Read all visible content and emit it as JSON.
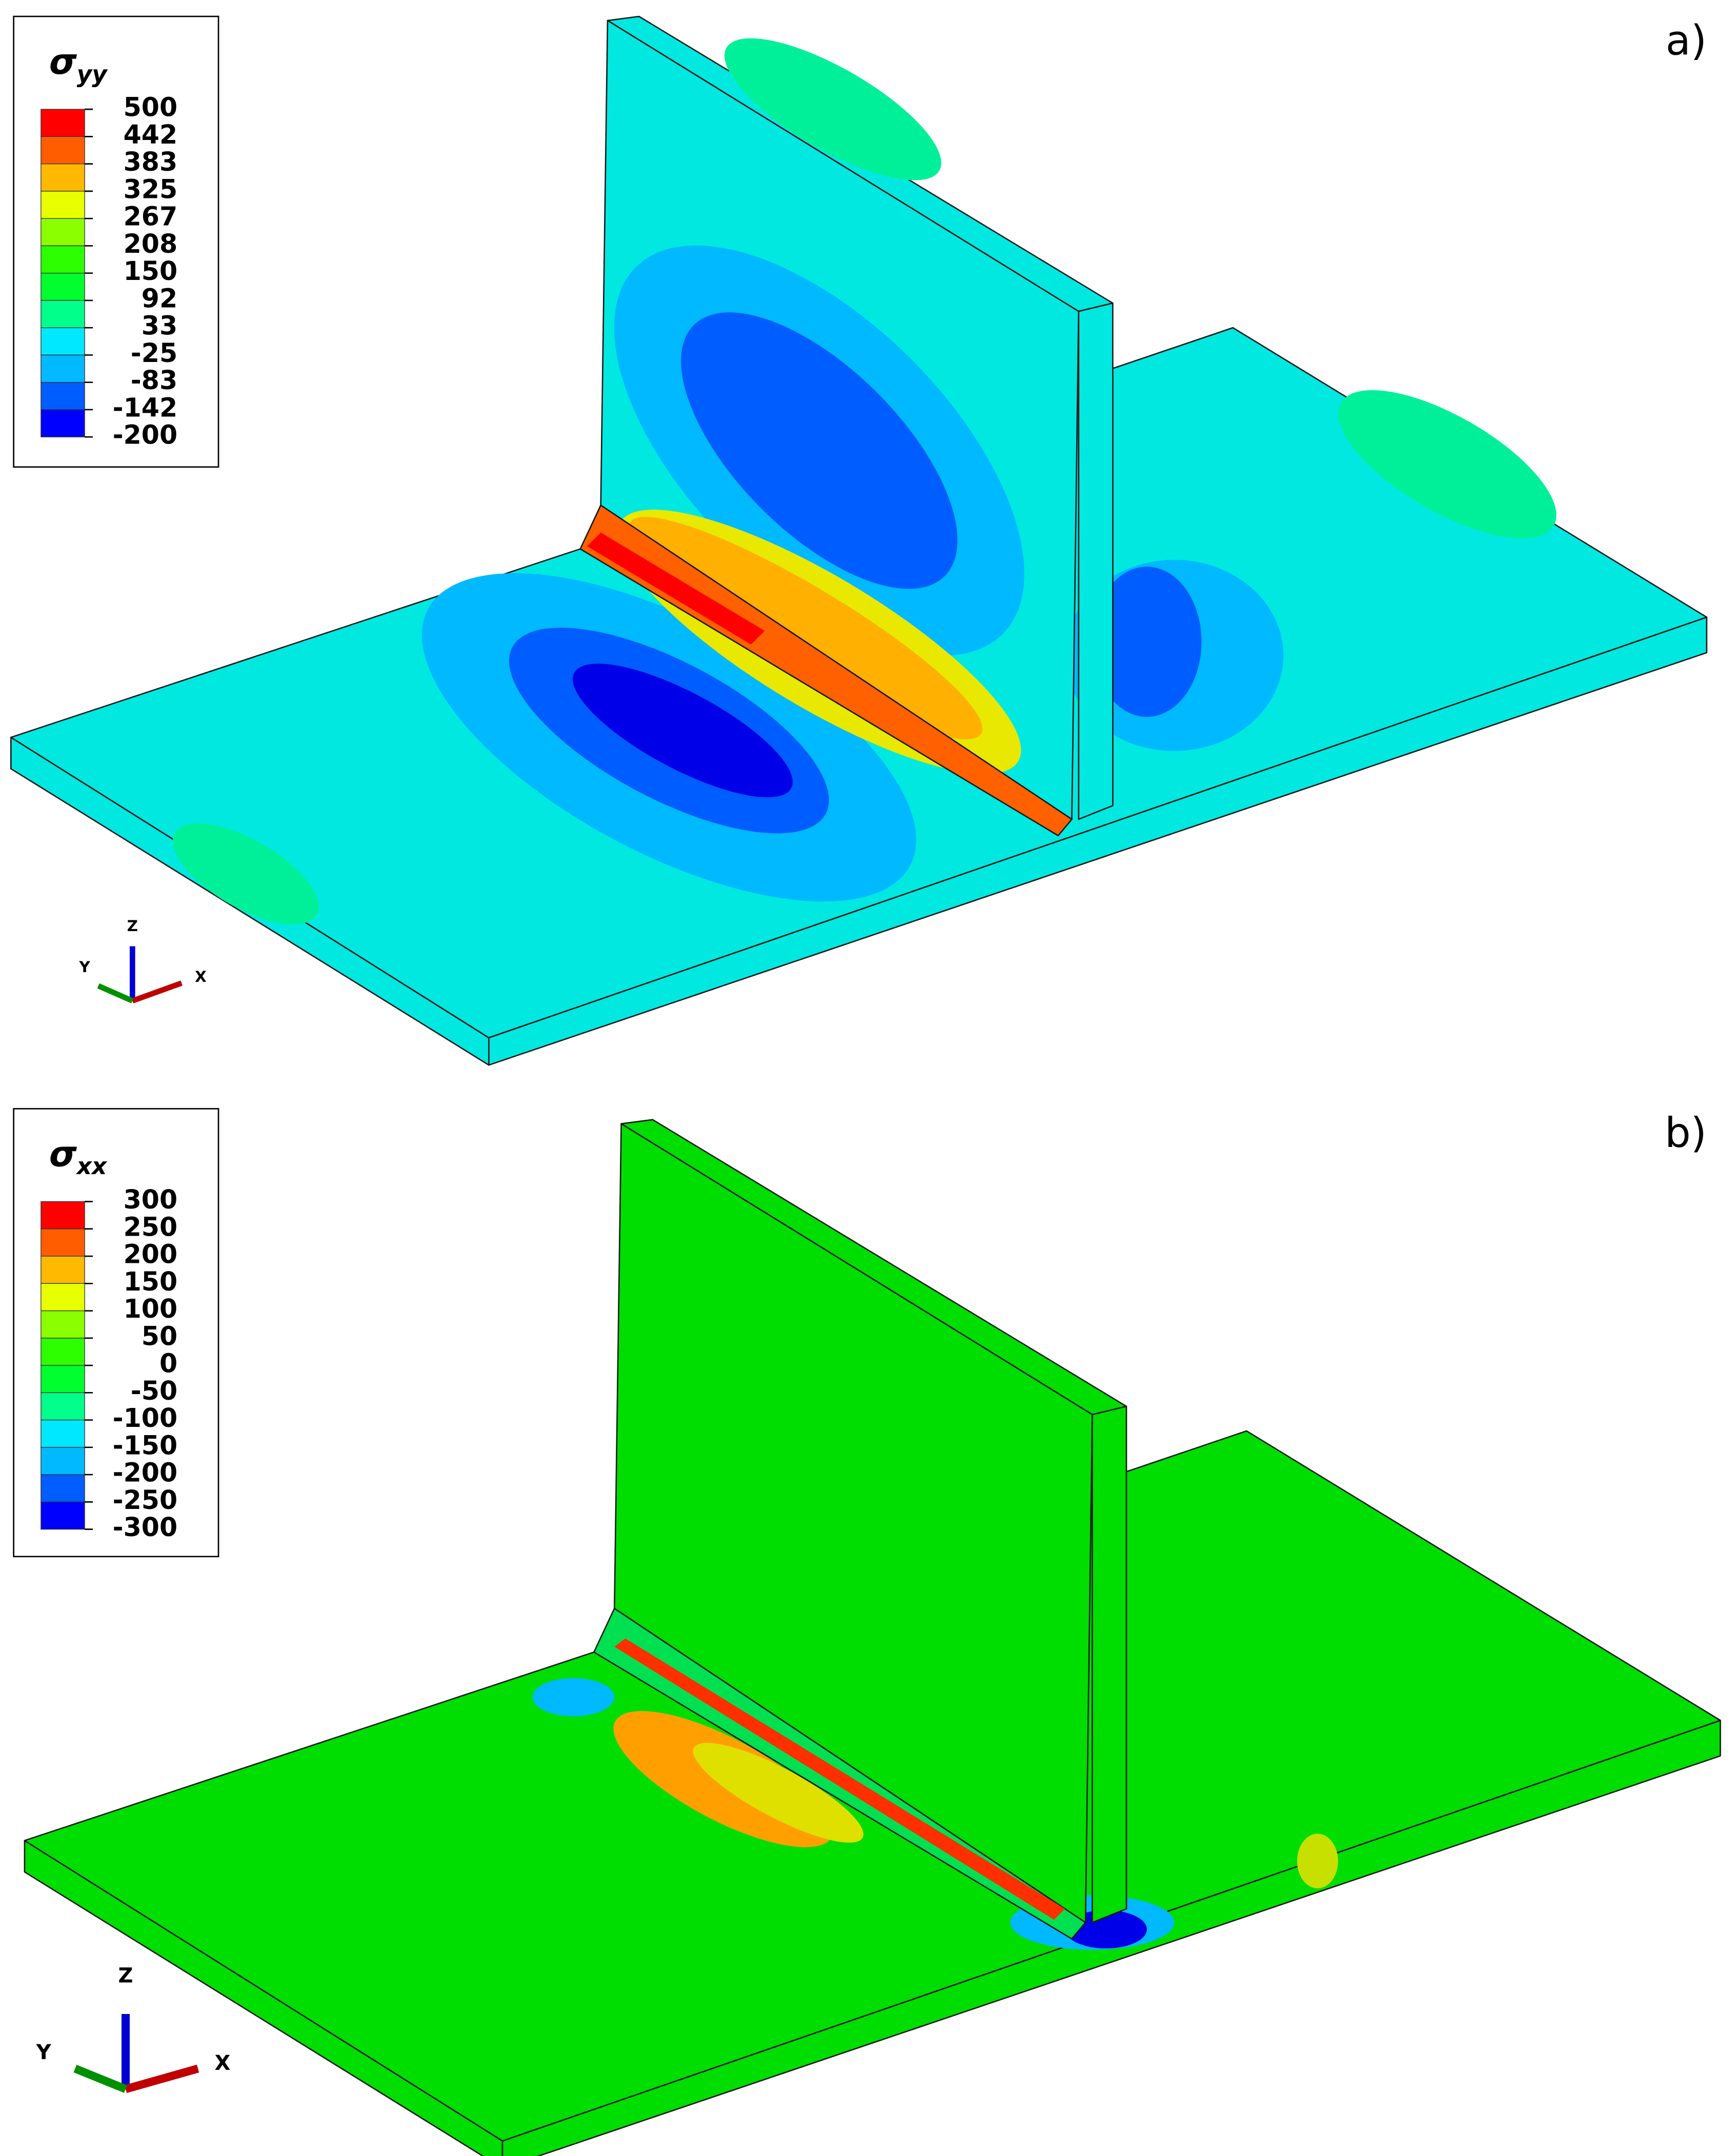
{
  "panels": [
    {
      "label": "a)",
      "legend": {
        "title": {
          "symbol": "σ",
          "subscript": "yy"
        },
        "values": [
          500,
          442,
          383,
          325,
          267,
          208,
          150,
          92,
          33,
          -25,
          -83,
          -142,
          -200
        ]
      },
      "axes": [
        "Z",
        "Y",
        "X"
      ]
    },
    {
      "label": "b)",
      "legend": {
        "title": {
          "symbol": "σ",
          "subscript": "xx"
        },
        "values": [
          300,
          250,
          200,
          150,
          100,
          50,
          0,
          -50,
          -100,
          -150,
          -200,
          -250,
          -300
        ]
      },
      "axes": [
        "Z",
        "Y",
        "X"
      ]
    }
  ]
}
